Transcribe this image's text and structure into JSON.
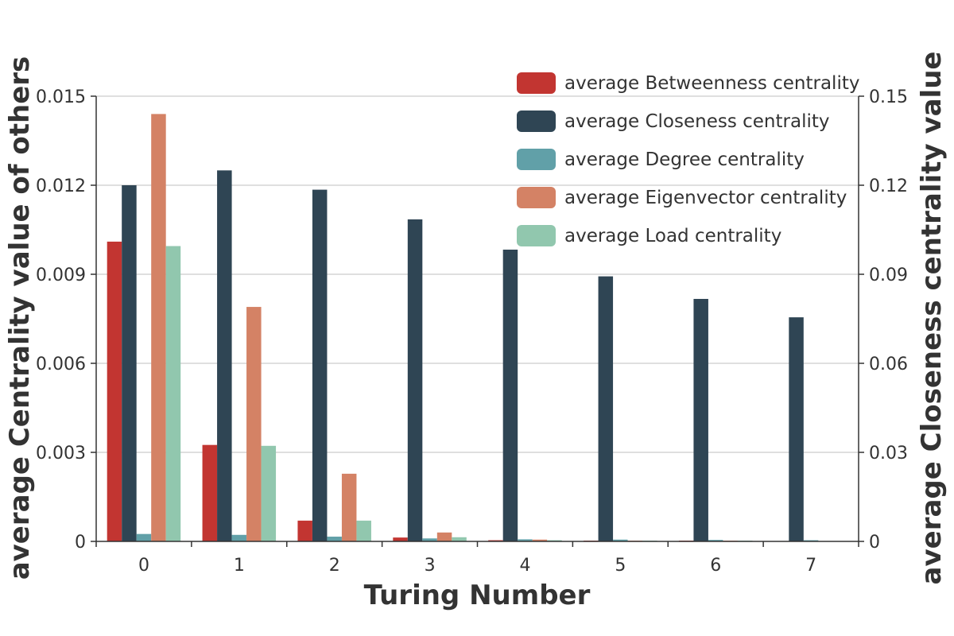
{
  "chart_data": {
    "type": "bar",
    "title": "",
    "xlabel": "Turing Number",
    "ylabel": "average Centrality value of others",
    "y2label": "average Closeness centrality value",
    "categories": [
      "0",
      "1",
      "2",
      "3",
      "4",
      "5",
      "6",
      "7"
    ],
    "ylim": [
      0,
      0.015
    ],
    "y2lim": [
      0,
      0.15
    ],
    "yticks": [
      "0",
      "0.003",
      "0.006",
      "0.009",
      "0.012",
      "0.015"
    ],
    "y2ticks": [
      "0",
      "0.03",
      "0.06",
      "0.09",
      "0.12",
      "0.15"
    ],
    "grid": true,
    "legend_position": "top-right",
    "series": [
      {
        "name": "average Betweenness centrality",
        "axis": "left",
        "color": "#c23531",
        "values": [
          0.0101,
          0.00325,
          0.0007,
          0.00013,
          4e-05,
          2e-05,
          1e-05,
          0.0
        ]
      },
      {
        "name": "average Closeness centrality",
        "axis": "right",
        "color": "#2f4554",
        "values": [
          0.12,
          0.125,
          0.1185,
          0.1085,
          0.0983,
          0.0893,
          0.0817,
          0.0755
        ]
      },
      {
        "name": "average Degree centrality",
        "axis": "left",
        "color": "#61a0a8",
        "values": [
          0.00025,
          0.00022,
          0.00016,
          0.0001,
          7e-05,
          6e-05,
          5e-05,
          4e-05
        ]
      },
      {
        "name": "average Eigenvector centrality",
        "axis": "left",
        "color": "#d48265",
        "values": [
          0.0144,
          0.0079,
          0.00228,
          0.0003,
          6e-05,
          2e-05,
          1e-05,
          0.0
        ]
      },
      {
        "name": "average Load centrality",
        "axis": "left",
        "color": "#91c7ae",
        "values": [
          0.00995,
          0.00322,
          0.0007,
          0.00014,
          4e-05,
          2e-05,
          1e-05,
          0.0
        ]
      }
    ]
  }
}
